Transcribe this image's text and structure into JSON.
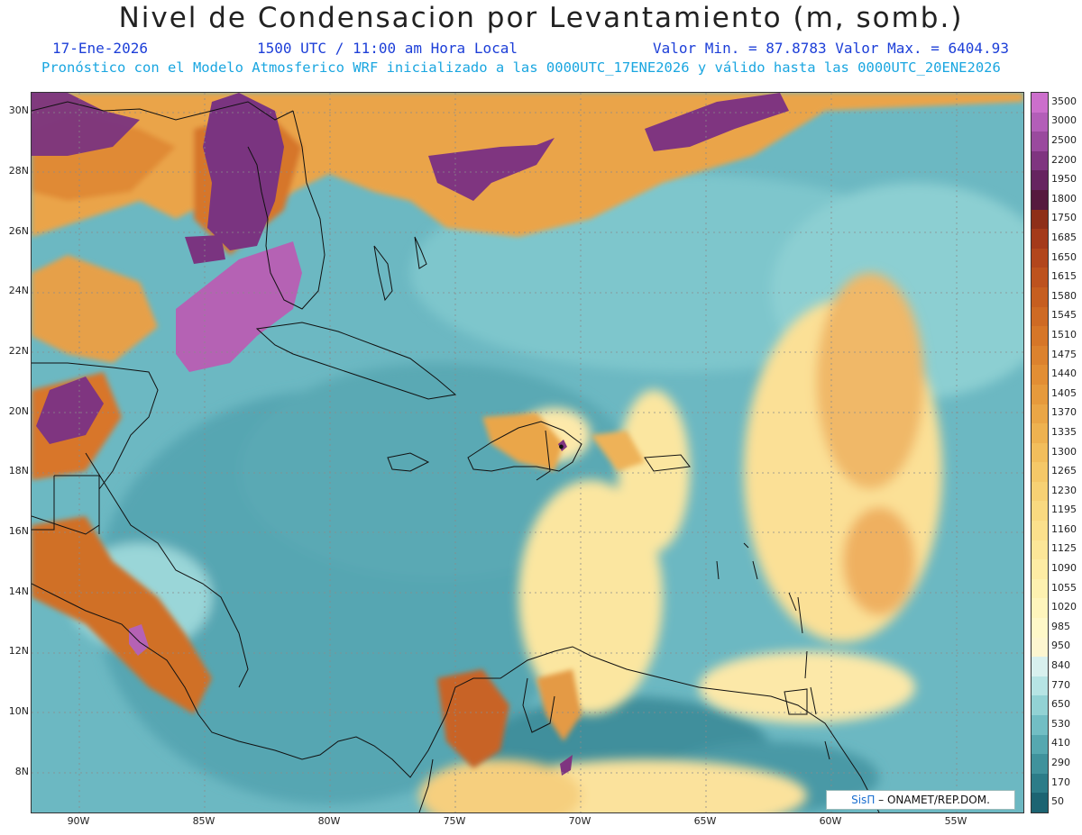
{
  "header": {
    "title": "Nivel de Condensacion por Levantamiento (m, somb.)",
    "date": "17-Ene-2026",
    "time": "1500 UTC / 11:00 am Hora Local",
    "minmax": "Valor Min. = 87.8783  Valor Max. = 6404.93",
    "forecast": "Pronóstico con el Modelo Atmosferico WRF inicializado a las 0000UTC_17ENE2026 y válido hasta las  0000UTC_20ENE2026"
  },
  "map": {
    "lat_labels": [
      "30N",
      "28N",
      "26N",
      "24N",
      "22N",
      "20N",
      "18N",
      "16N",
      "14N",
      "12N",
      "10N",
      "8N"
    ],
    "lon_labels": [
      "90W",
      "85W",
      "80W",
      "75W",
      "70W",
      "65W",
      "60W",
      "55W"
    ],
    "credit_sis": "SisΠ",
    "credit_rest": "– ONAMET/REP.DOM."
  },
  "colorbar": {
    "labels": [
      "3500",
      "3000",
      "2500",
      "2200",
      "1950",
      "1800",
      "1750",
      "1685",
      "1650",
      "1615",
      "1580",
      "1545",
      "1510",
      "1475",
      "1440",
      "1405",
      "1370",
      "1335",
      "1300",
      "1265",
      "1230",
      "1195",
      "1160",
      "1125",
      "1090",
      "1055",
      "1020",
      "985",
      "950",
      "840",
      "770",
      "650",
      "530",
      "410",
      "290",
      "170",
      "50"
    ],
    "colors": [
      "#cc6fcc",
      "#b35eb8",
      "#9a4a9e",
      "#7f3580",
      "#662460",
      "#561a3e",
      "#8e2f18",
      "#a43a1a",
      "#b2461c",
      "#bd521e",
      "#c65e20",
      "#ce6a24",
      "#d67628",
      "#dc822e",
      "#e28e34",
      "#e69a3c",
      "#eaa646",
      "#eeb250",
      "#f2be5c",
      "#f5c868",
      "#f7d174",
      "#f9d980",
      "#fbe08c",
      "#fce698",
      "#fdeca4",
      "#fdf1b0",
      "#fef5bc",
      "#fef8c8",
      "#fdf6d0",
      "#d8f0ee",
      "#b6e4e4",
      "#92d2d4",
      "#72bec4",
      "#56a8b0",
      "#40929c",
      "#2c7c88",
      "#1c6472"
    ]
  }
}
